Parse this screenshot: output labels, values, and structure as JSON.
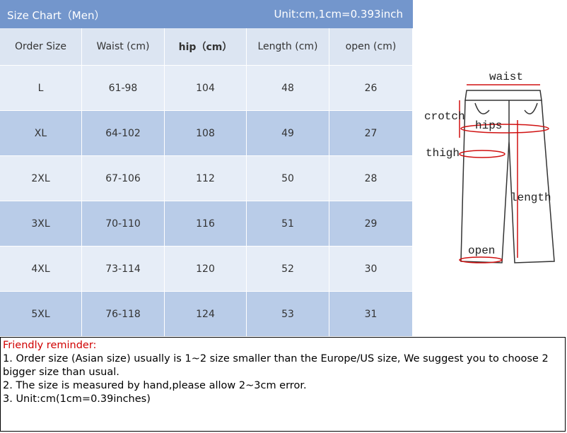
{
  "header": {
    "title": "Size Chart（Men）",
    "unit": "Unit:cm,1cm=0.393inch"
  },
  "table": {
    "columns": [
      "Order Size",
      "Waist (cm)",
      "hip（cm）",
      "Length (cm)",
      "open (cm)"
    ],
    "rows": [
      [
        "L",
        "61-98",
        104,
        48,
        26
      ],
      [
        "XL",
        "64-102",
        108,
        49,
        27
      ],
      [
        "2XL",
        "67-106",
        112,
        50,
        28
      ],
      [
        "3XL",
        "70-110",
        116,
        51,
        29
      ],
      [
        "4XL",
        "73-114",
        120,
        52,
        30
      ],
      [
        "5XL",
        "76-118",
        124,
        53,
        31
      ]
    ]
  },
  "diagram": {
    "waist": "waist",
    "crotch": "crotch",
    "hips": "hips",
    "thigh": "thigh",
    "length": "length",
    "open": "open"
  },
  "notes": {
    "heading": "Friendly reminder:",
    "items": [
      "1. Order size (Asian size) usually is 1~2 size smaller than the Europe/US size, We suggest you to choose 2 bigger size than usual.",
      "2. The size is measured by hand,please allow 2~3cm error.",
      "3. Unit:cm(1cm=0.39inches)"
    ]
  }
}
